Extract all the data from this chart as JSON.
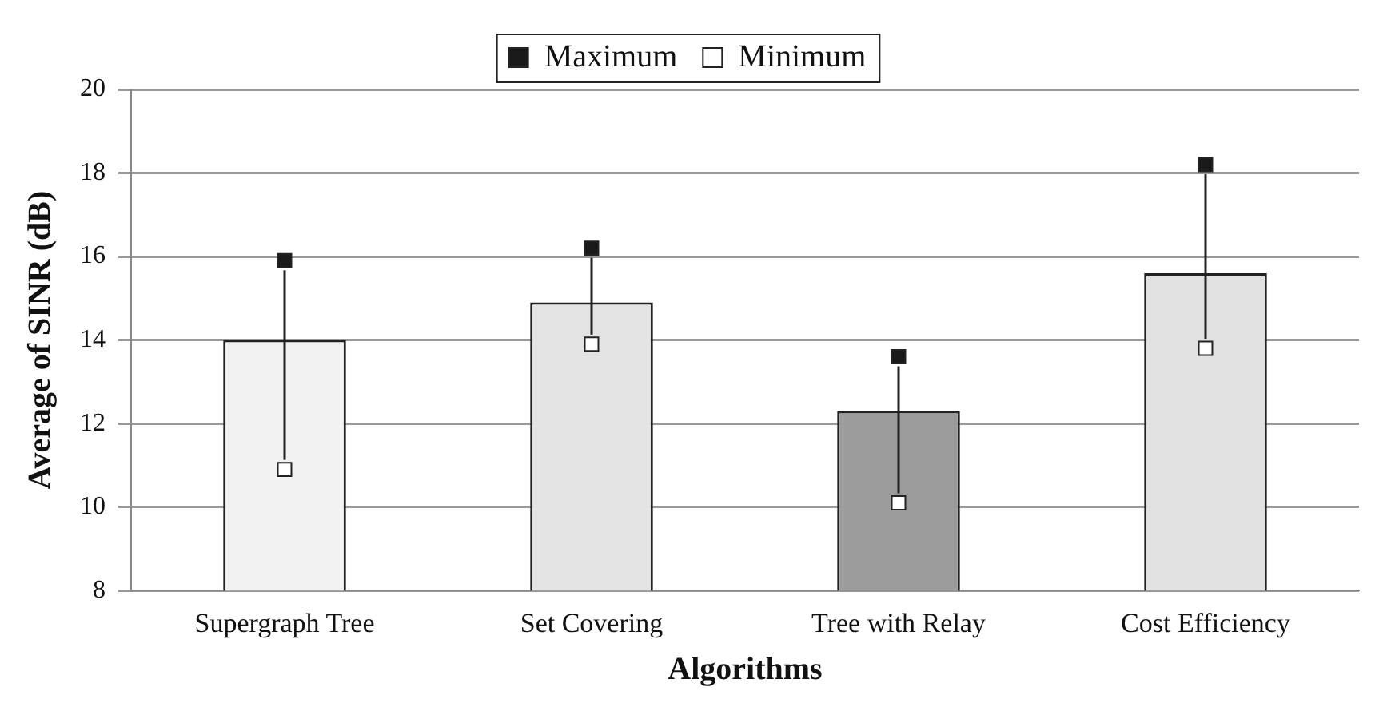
{
  "chart_data": {
    "type": "bar",
    "xlabel": "Algorithms",
    "ylabel": "Average of SINR (dB)",
    "categories": [
      "Supergraph Tree",
      "Set Covering",
      "Tree with Relay",
      "Cost Efficiency"
    ],
    "series": [
      {
        "colors": [
          "#f2f2f2",
          "#e4e4e4",
          "#9c9c9c",
          "#e2e2e2"
        ],
        "values": [
          14.0,
          14.9,
          12.3,
          15.6
        ]
      },
      {
        "type": "scatter",
        "name": "Maximum",
        "color": "#1a1a1a",
        "x": [
          "Supergraph Tree",
          "Set Covering",
          "Tree with Relay",
          "Cost Efficiency"
        ],
        "values": [
          15.9,
          16.2,
          13.6,
          18.2
        ]
      },
      {
        "type": "scatter",
        "name": "Minimum",
        "color": "#ffffff",
        "x": [
          "Supergraph Tree",
          "Set Covering",
          "Tree with Relay",
          "Cost Efficiency"
        ],
        "values": [
          10.9,
          13.9,
          10.1,
          13.8
        ]
      }
    ],
    "marker": "square",
    "ylim": [
      8,
      20
    ],
    "yticks": [
      8,
      10,
      12,
      14,
      16,
      18,
      20
    ],
    "grid": "y",
    "legend": "top"
  }
}
